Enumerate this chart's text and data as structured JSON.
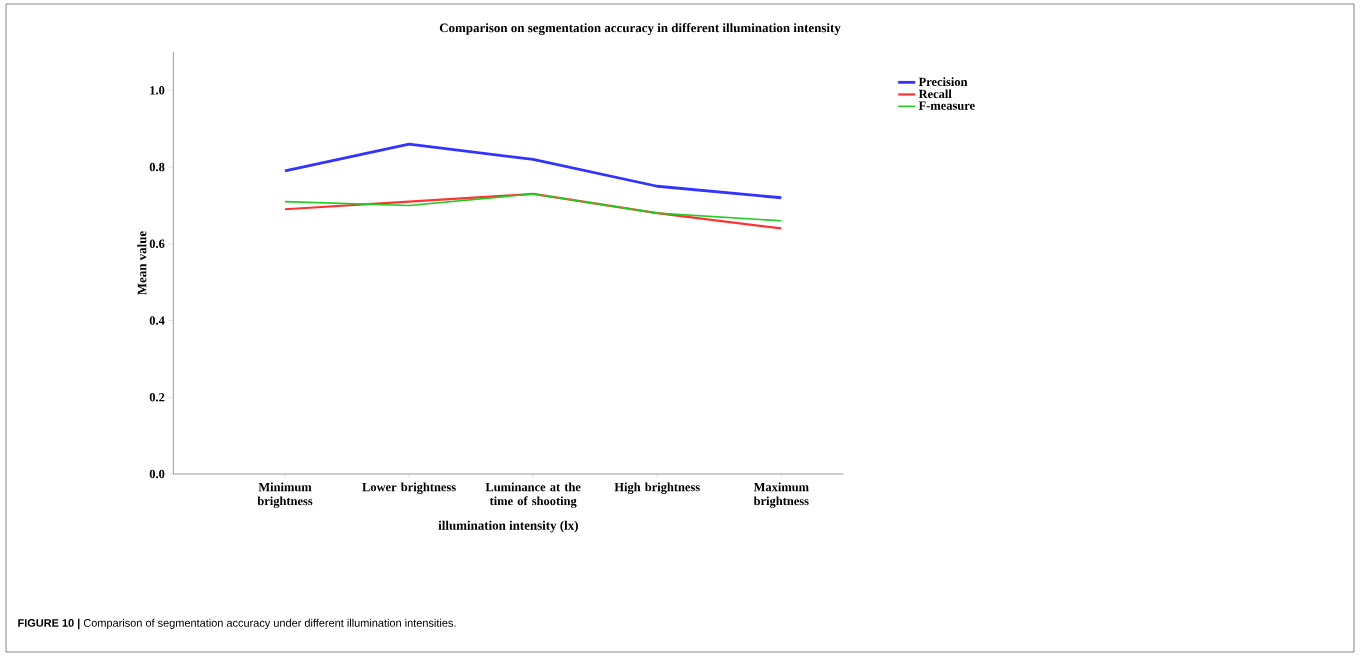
{
  "chart_data": {
    "type": "line",
    "title": "Comparison on segmentation accuracy in different illumination intensity",
    "xlabel": "illumination intensity (lx)",
    "ylabel": "Mean value",
    "categories": [
      "Minimum brightness",
      "Lower brightness",
      "Luminance at the time of shooting",
      "High brightness",
      "Maximum brightness"
    ],
    "series": [
      {
        "name": "Precision",
        "color": "#3333ff",
        "values": [
          0.79,
          0.86,
          0.82,
          0.75,
          0.72
        ]
      },
      {
        "name": "Recall",
        "color": "#ff3333",
        "values": [
          0.69,
          0.71,
          0.73,
          0.68,
          0.64
        ]
      },
      {
        "name": "F-measure",
        "color": "#22cc22",
        "values": [
          0.71,
          0.7,
          0.73,
          0.68,
          0.66
        ]
      }
    ],
    "ylim": [
      0,
      1.1
    ],
    "yticks": [
      {
        "value": 0,
        "label": "0.0"
      },
      {
        "value": 0.2,
        "label": "0.2"
      },
      {
        "value": 0.4,
        "label": "0.4"
      },
      {
        "value": 0.6,
        "label": "0.6"
      },
      {
        "value": 0.8,
        "label": "0.8"
      },
      {
        "value": 1.0,
        "label": "1.0"
      }
    ],
    "legend": "top right",
    "marker": "none",
    "line_style": "solid",
    "annotations": [
      "**FIGURE 10 |** Comparison of segmentation accuracy under different illumination intensities."
    ]
  }
}
